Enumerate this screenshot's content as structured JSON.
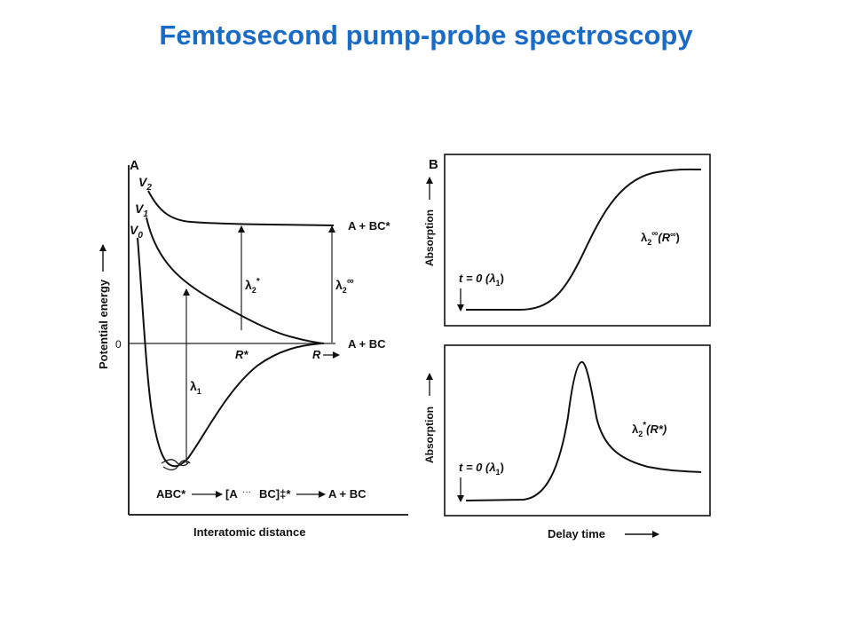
{
  "slide": {
    "title": "Femtosecond pump-probe spectroscopy"
  },
  "panel_a": {
    "letter": "A",
    "y_axis_label": "Potential energy",
    "y_zero_label": "0",
    "x_axis_label": "Interatomic distance",
    "curve_labels": {
      "v2_letter": "V",
      "v2_sub": "2",
      "v1_letter": "V",
      "v1_sub": "1",
      "v0_letter": "V",
      "v0_sub": "0"
    },
    "asymptote_upper": "A + BC*",
    "asymptote_lower": "A + BC",
    "r_star": "R*",
    "r_axis": "R",
    "lambda1": {
      "sym": "λ",
      "sub": "1"
    },
    "lambda2_star": {
      "sym": "λ",
      "sub": "2",
      "sup": "*"
    },
    "lambda2_inf": {
      "sym": "λ",
      "sub": "2",
      "sup": "∞"
    },
    "reaction": {
      "reactant": "ABC*",
      "ts_left": "[A",
      "ts_dots": "···",
      "ts_right": "BC]‡*",
      "product": "A + BC"
    }
  },
  "panel_b": {
    "letter": "B",
    "y_axis_label": "Absorption",
    "x_axis_label": "Delay time",
    "top": {
      "t0_label": "t = 0 (λ",
      "t0_sub": "1",
      "t0_close": ")",
      "probe_sym": "λ",
      "probe_sub": "2",
      "probe_sup": "∞",
      "probe_arg": "(R",
      "probe_arg_sup": "∞",
      "probe_close": ")"
    },
    "bottom": {
      "t0_label": "t = 0 (λ",
      "t0_sub": "1",
      "t0_close": ")",
      "probe_sym": "λ",
      "probe_sub": "2",
      "probe_sup": "*",
      "probe_arg": "(R*)"
    }
  }
}
